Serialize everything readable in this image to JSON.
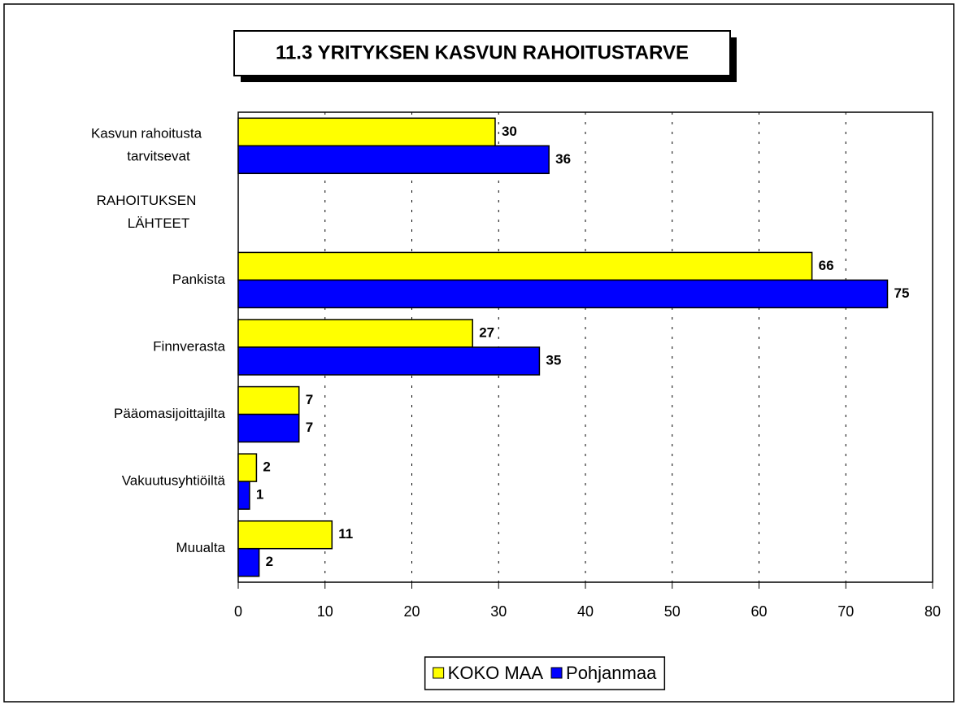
{
  "chart_data": {
    "type": "bar",
    "orientation": "horizontal",
    "title": "11.3 YRITYKSEN KASVUN RAHOITUSTARVE",
    "categories": [
      "Kasvun rahoitusta tarvitsevat",
      "RAHOITUKSEN LÄHTEET",
      "Pankista",
      "Finnverasta",
      "Pääomasijoittajilta",
      "Vakuutusyhtiöiltä",
      "Muualta"
    ],
    "series": [
      {
        "name": "KOKO MAA",
        "color": "#ffff00",
        "values": [
          29.6,
          null,
          66.1,
          27.0,
          7.0,
          2.1,
          10.8
        ],
        "value_labels": [
          "30",
          null,
          "66",
          "27",
          "7",
          "2",
          "11"
        ]
      },
      {
        "name": "Pohjanmaa",
        "color": "#0000ff",
        "values": [
          35.8,
          null,
          74.8,
          34.7,
          7.0,
          1.3,
          2.4
        ],
        "value_labels": [
          "36",
          null,
          "75",
          "35",
          "7",
          "1",
          "2"
        ]
      }
    ],
    "xlim": [
      0,
      80
    ],
    "xticks": [
      0,
      10,
      20,
      30,
      40,
      50,
      60,
      70,
      80
    ],
    "grid": true,
    "legend": "bottom"
  }
}
